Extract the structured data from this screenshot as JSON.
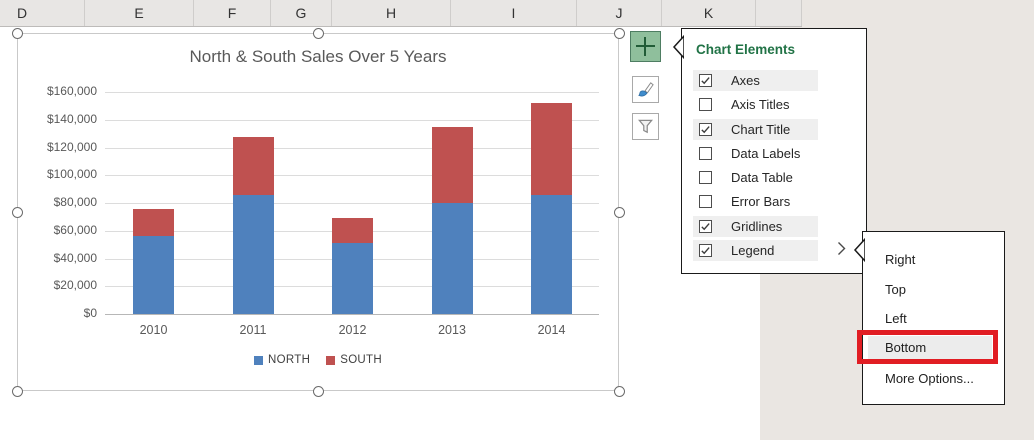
{
  "spreadsheet": {
    "column_headers": [
      "D",
      "E",
      "F",
      "G",
      "H",
      "I",
      "J",
      "K"
    ]
  },
  "chart_data": {
    "type": "bar",
    "stacked": true,
    "title": "North & South Sales Over 5 Years",
    "categories": [
      "2010",
      "2011",
      "2012",
      "2013",
      "2014"
    ],
    "series": [
      {
        "name": "NORTH",
        "color": "#4f81bd",
        "values": [
          56000,
          86000,
          51000,
          80000,
          86000
        ]
      },
      {
        "name": "SOUTH",
        "color": "#bf5150",
        "values": [
          20000,
          41500,
          18000,
          55000,
          66000
        ]
      }
    ],
    "yticks": [
      "$0",
      "$20,000",
      "$40,000",
      "$60,000",
      "$80,000",
      "$100,000",
      "$120,000",
      "$140,000",
      "$160,000"
    ],
    "ylim": [
      0,
      160000
    ],
    "gridlines": true,
    "legend_position": "bottom",
    "legend_entries": [
      "NORTH",
      "SOUTH"
    ]
  },
  "chart_elements_menu": {
    "title": "Chart Elements",
    "items": [
      {
        "label": "Axes",
        "checked": true
      },
      {
        "label": "Axis Titles",
        "checked": false
      },
      {
        "label": "Chart Title",
        "checked": true
      },
      {
        "label": "Data Labels",
        "checked": false
      },
      {
        "label": "Data Table",
        "checked": false
      },
      {
        "label": "Error Bars",
        "checked": false
      },
      {
        "label": "Gridlines",
        "checked": true
      },
      {
        "label": "Legend",
        "checked": true,
        "has_submenu": true
      }
    ]
  },
  "legend_submenu": {
    "items": [
      "Right",
      "Top",
      "Left",
      "Bottom",
      "More Options..."
    ],
    "hovered_item": "Bottom",
    "annotated_item": "Bottom"
  },
  "colors": {
    "series_north": "#4f81bd",
    "series_south": "#bf5150",
    "excel_green": "#217346",
    "elements_button_green": "#8fbf9c",
    "annotation_red": "#e11d23",
    "app_background": "#eae6e2"
  }
}
